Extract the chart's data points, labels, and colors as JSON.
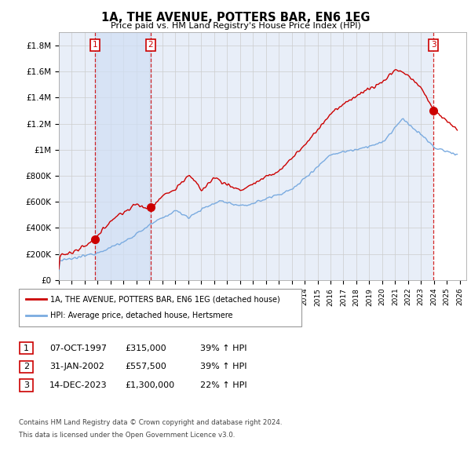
{
  "title": "1A, THE AVENUE, POTTERS BAR, EN6 1EG",
  "subtitle": "Price paid vs. HM Land Registry's House Price Index (HPI)",
  "legend_line1": "1A, THE AVENUE, POTTERS BAR, EN6 1EG (detached house)",
  "legend_line2": "HPI: Average price, detached house, Hertsmere",
  "footer1": "Contains HM Land Registry data © Crown copyright and database right 2024.",
  "footer2": "This data is licensed under the Open Government Licence v3.0.",
  "transactions": [
    {
      "num": 1,
      "date": "07-OCT-1997",
      "price": "£315,000",
      "hpi": "39% ↑ HPI",
      "x": 1997.77
    },
    {
      "num": 2,
      "date": "31-JAN-2002",
      "price": "£557,500",
      "hpi": "39% ↑ HPI",
      "x": 2002.08
    },
    {
      "num": 3,
      "date": "14-DEC-2023",
      "price": "£1,300,000",
      "hpi": "22% ↑ HPI",
      "x": 2023.96
    }
  ],
  "sale_prices": [
    315000,
    557500,
    1300000
  ],
  "sale_years": [
    1997.77,
    2002.08,
    2023.96
  ],
  "hpi_color": "#7aabe0",
  "price_color": "#cc0000",
  "background_plot": "#e8eef8",
  "grid_color": "#cccccc",
  "xlim": [
    1995.0,
    2026.5
  ],
  "ylim": [
    0,
    1900000
  ],
  "yticks": [
    0,
    200000,
    400000,
    600000,
    800000,
    1000000,
    1200000,
    1400000,
    1600000,
    1800000
  ],
  "ytick_labels": [
    "£0",
    "£200K",
    "£400K",
    "£600K",
    "£800K",
    "£1M",
    "£1.2M",
    "£1.4M",
    "£1.6M",
    "£1.8M"
  ],
  "xtick_years": [
    1995,
    1996,
    1997,
    1998,
    1999,
    2000,
    2001,
    2002,
    2003,
    2004,
    2005,
    2006,
    2007,
    2008,
    2009,
    2010,
    2011,
    2012,
    2013,
    2014,
    2015,
    2016,
    2017,
    2018,
    2019,
    2020,
    2021,
    2022,
    2023,
    2024,
    2025,
    2026
  ]
}
